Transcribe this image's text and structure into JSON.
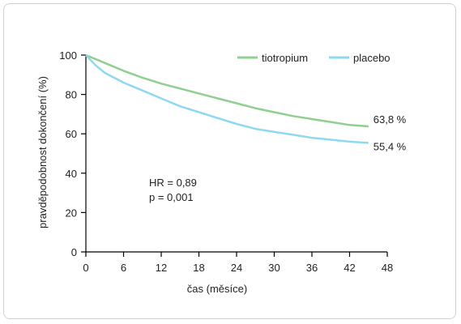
{
  "chart_data": {
    "type": "line",
    "title": "",
    "xlabel": "čas (měsíce)",
    "ylabel": "pravděpodobnost dokončení (%)",
    "xlim": [
      0,
      48
    ],
    "ylim": [
      0,
      100
    ],
    "xticks": [
      0,
      6,
      12,
      18,
      24,
      30,
      36,
      42,
      48
    ],
    "yticks": [
      0,
      20,
      40,
      60,
      80,
      100
    ],
    "grid": false,
    "legend_position": "top-right",
    "series": [
      {
        "name": "tiotropium",
        "color": "#8fcf8f",
        "x": [
          0,
          3,
          6,
          9,
          12,
          15,
          18,
          21,
          24,
          27,
          30,
          33,
          36,
          39,
          42,
          45
        ],
        "y": [
          100,
          96,
          92,
          88.5,
          85.5,
          83,
          80.5,
          78,
          75.5,
          73,
          71,
          69,
          67.5,
          66,
          64.5,
          63.8
        ],
        "end_label": "63,8 %"
      },
      {
        "name": "placebo",
        "color": "#8ed8f2",
        "x": [
          0,
          1.5,
          3,
          4.5,
          6,
          9,
          12,
          15,
          18,
          21,
          24,
          27,
          30,
          33,
          36,
          39,
          42,
          45
        ],
        "y": [
          100,
          95,
          91,
          88.5,
          86,
          82,
          78,
          74,
          71,
          68,
          65,
          62.5,
          61,
          59.5,
          58,
          57,
          56,
          55.4
        ],
        "end_label": "55,4 %"
      }
    ],
    "annotations": [
      "HR = 0,89",
      "p = 0,001"
    ]
  }
}
